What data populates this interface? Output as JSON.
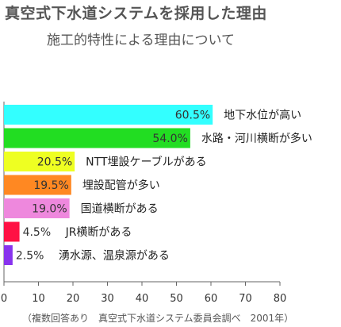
{
  "chart_data": {
    "type": "bar",
    "orientation": "horizontal",
    "title": "真空式下水道システムを採用した理由",
    "subtitle": "施工的特性による理由について",
    "categories": [
      "地下水位が高い",
      "水路・河川横断が多い",
      "NTT埋設ケーブルがある",
      "埋設配管が多い",
      "国道横断がある",
      "JR横断がある",
      "湧水源、温泉源がある"
    ],
    "values": [
      60.5,
      54.0,
      20.5,
      19.5,
      19.0,
      4.5,
      2.5
    ],
    "value_labels": [
      "60.5%",
      "54.0%",
      "20.5%",
      "19.5%",
      "19.0%",
      "4.5%",
      "2.5%"
    ],
    "colors": [
      "#33ffff",
      "#22dd22",
      "#eeff22",
      "#ff8822",
      "#ee88dd",
      "#ff1144",
      "#8833ee"
    ],
    "xlim": [
      0,
      80
    ],
    "xticks": [
      0,
      10,
      20,
      30,
      40,
      50,
      60,
      70,
      80
    ],
    "xlabel": "",
    "ylabel": "",
    "grid": false,
    "footnote": "（複数回答あり　真空式下水道システム委員会調べ　2001年）"
  }
}
